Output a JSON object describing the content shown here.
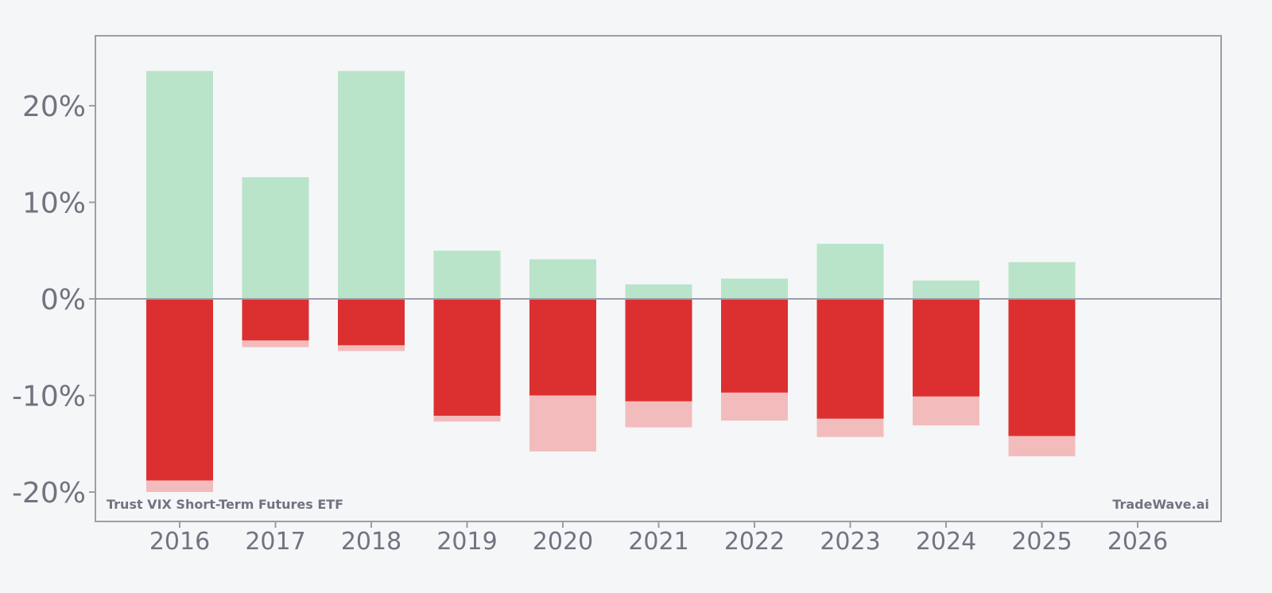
{
  "chart_data": {
    "type": "bar",
    "categories": [
      "2016",
      "2017",
      "2018",
      "2019",
      "2020",
      "2021",
      "2022",
      "2023",
      "2024",
      "2025",
      "2026"
    ],
    "series": [
      {
        "values": [
          23.6,
          12.6,
          23.6,
          5.0,
          4.1,
          1.5,
          2.1,
          5.7,
          1.9,
          3.8,
          null
        ]
      },
      {
        "values": [
          -18.8,
          -4.3,
          -4.8,
          -12.1,
          -10.0,
          -10.6,
          -9.7,
          -12.4,
          -10.1,
          -14.2,
          null
        ]
      },
      {
        "values": [
          -20.0,
          -5.0,
          -5.4,
          -12.7,
          -15.8,
          -13.3,
          -12.6,
          -14.3,
          -13.1,
          -16.3,
          null
        ]
      }
    ],
    "ylim": [
      -23,
      27
    ],
    "yticks": [
      20,
      10,
      0,
      -10,
      -20
    ],
    "ytick_labels": [
      "20%",
      "10%",
      "0%",
      "-10%",
      "-20%"
    ],
    "grid": false,
    "colors": {
      "gain": "#b9e4c9",
      "loss": "#dc3030",
      "loss_extended": "#f3bcbc",
      "axis": "#9a9eaa",
      "text": "#6f7480",
      "background": "#f5f6f8"
    }
  },
  "annotations": {
    "bottom_left": "Trust VIX Short-Term Futures ETF",
    "bottom_right": "TradeWave.ai"
  }
}
